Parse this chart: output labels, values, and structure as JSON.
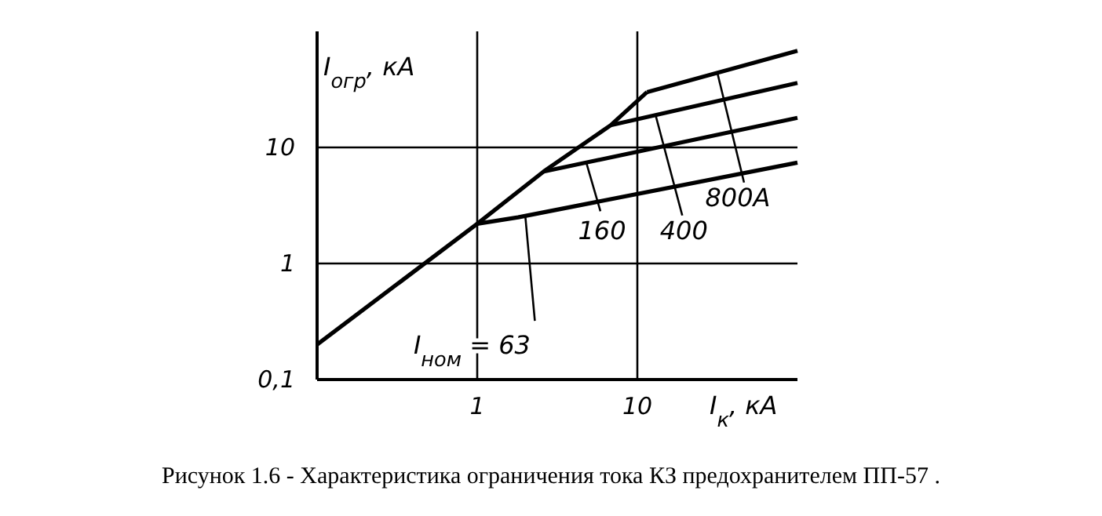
{
  "chart_data": {
    "type": "line",
    "xlabel": "I$_{к}$, кА",
    "ylabel": "I$_{огр}$, кА",
    "log": "xy",
    "grid": true,
    "marker": "none",
    "line_style": "solid",
    "color": "#000000",
    "xlim": [
      0.1,
      100
    ],
    "ylim": [
      0.1,
      100
    ],
    "xticks": [
      1,
      10
    ],
    "yticks": [
      {
        "value": 0.1,
        "label": "0,1"
      },
      1,
      10
    ],
    "series": [
      {
        "color": "#000000",
        "x": [
          0.1,
          1,
          2.6,
          6.8,
          11.5
        ],
        "values": [
          0.2,
          2.2,
          6.2,
          15.5,
          30
        ]
      },
      {
        "color": "#000000",
        "x": [
          1,
          1.8,
          100
        ],
        "values": [
          2.2,
          2.5,
          7.4
        ]
      },
      {
        "color": "#000000",
        "x": [
          2.6,
          100
        ],
        "values": [
          6.2,
          18
        ]
      },
      {
        "color": "#000000",
        "x": [
          6.8,
          100
        ],
        "values": [
          15.5,
          36
        ]
      },
      {
        "color": "#000000",
        "x": [
          11.5,
          100
        ],
        "values": [
          30,
          68
        ]
      }
    ],
    "annotations": [
      {
        "text": "I$_{ном}$ = 63",
        "x": 2,
        "y": 2.5
      },
      {
        "text": "160",
        "x": 4.8,
        "y": 7.4
      },
      {
        "text": "400",
        "x": 13,
        "y": 19
      },
      {
        "text": "800A",
        "x": 31.6,
        "y": 44
      },
      "Рисунок 1.6 - Характеристика ограничения тока КЗ предохранителем ПП-57 ."
    ]
  }
}
